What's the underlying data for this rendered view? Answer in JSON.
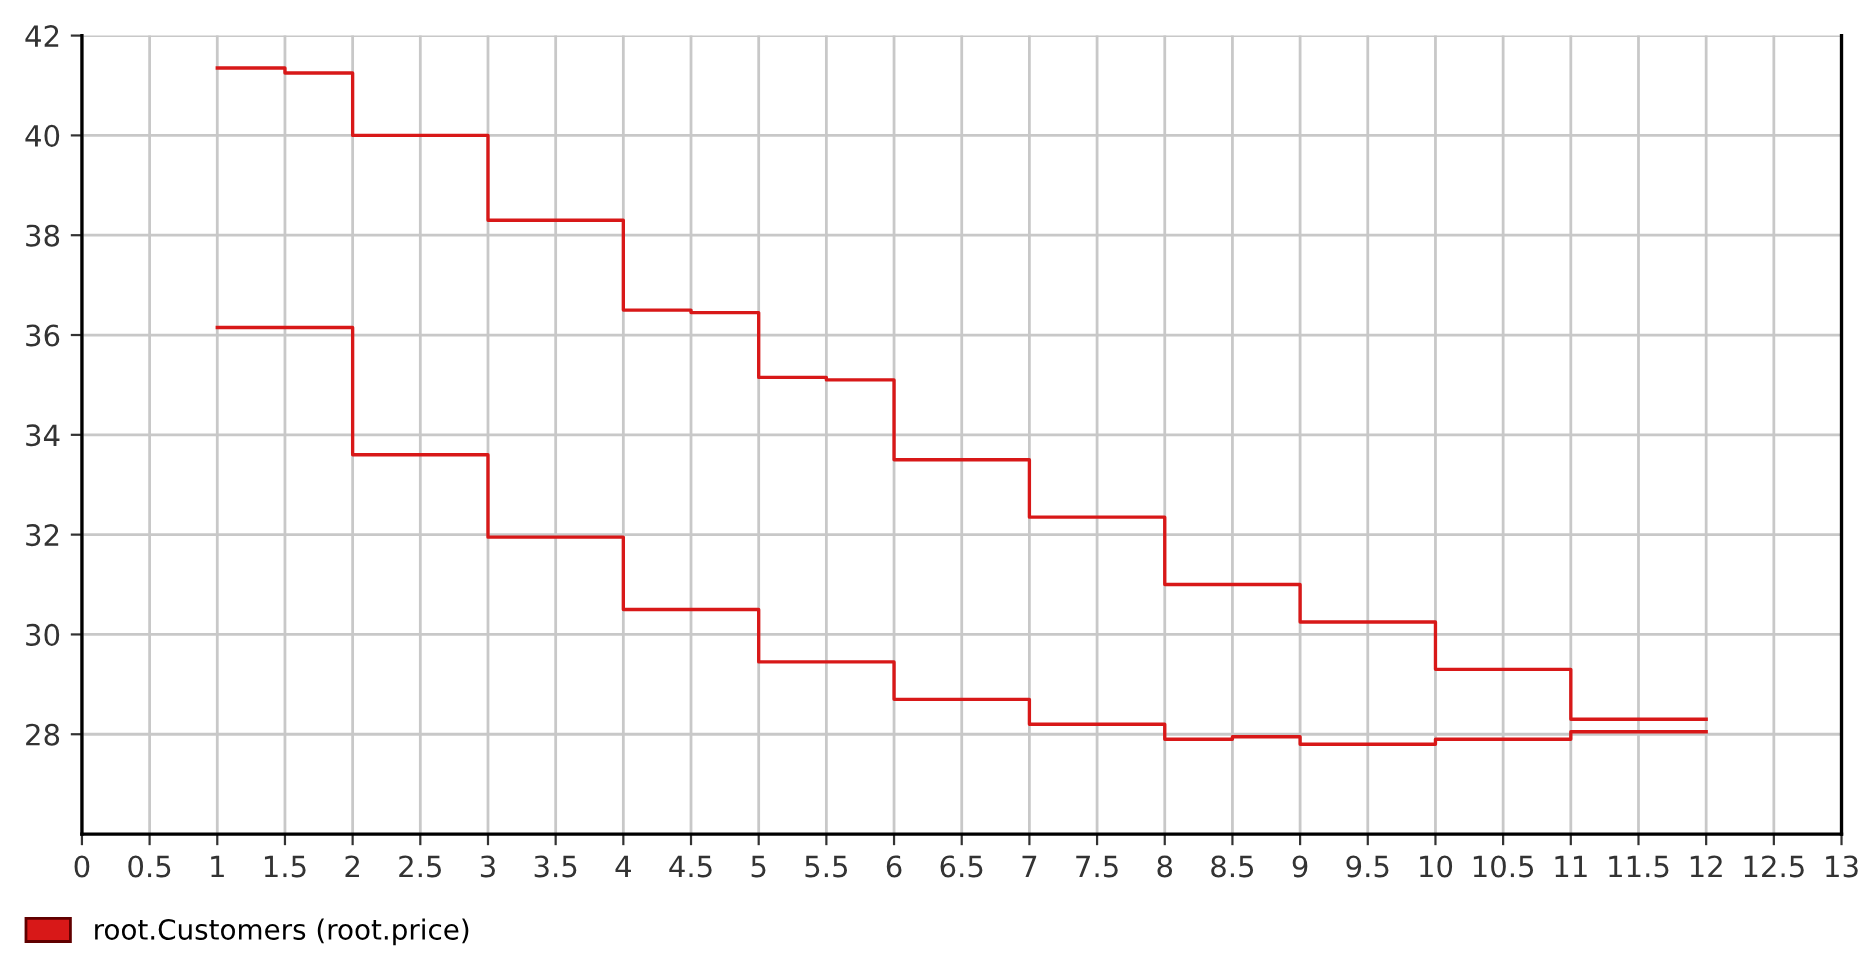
{
  "chart_data": {
    "type": "step",
    "xlim": [
      0,
      13
    ],
    "xticks": [
      0,
      0.5,
      1,
      1.5,
      2,
      2.5,
      3,
      3.5,
      4,
      4.5,
      5,
      5.5,
      6,
      6.5,
      7,
      7.5,
      8,
      8.5,
      9,
      9.5,
      10,
      10.5,
      11,
      11.5,
      12,
      12.5,
      13
    ],
    "ylim": [
      26,
      42
    ],
    "yticks": [
      28,
      30,
      32,
      34,
      36,
      38,
      40,
      42
    ],
    "grid": true,
    "legend": "bottom left",
    "line_style": "solid",
    "x": [
      1,
      1.5,
      2,
      2.5,
      3,
      3.5,
      4,
      4.5,
      5,
      5.5,
      6,
      6.5,
      7,
      7.5,
      8,
      8.5,
      9,
      9.5,
      10,
      10.5,
      11,
      11.5,
      12
    ],
    "series": [
      {
        "name": "root.Customers (root.price)",
        "color": "#d81818",
        "values": [
          41.35,
          41.25,
          40.0,
          40.0,
          38.3,
          38.3,
          36.5,
          36.45,
          35.15,
          35.1,
          33.5,
          33.5,
          32.35,
          32.35,
          31.0,
          31.0,
          30.25,
          30.25,
          29.3,
          29.3,
          28.3,
          28.3,
          28.3
        ]
      },
      {
        "color": "#d81818",
        "values": [
          36.15,
          36.15,
          33.6,
          33.6,
          31.95,
          31.95,
          30.5,
          30.5,
          29.45,
          29.45,
          28.7,
          28.7,
          28.2,
          28.2,
          27.9,
          27.95,
          27.8,
          27.8,
          27.9,
          27.9,
          28.05,
          28.05,
          28.05
        ]
      }
    ]
  }
}
